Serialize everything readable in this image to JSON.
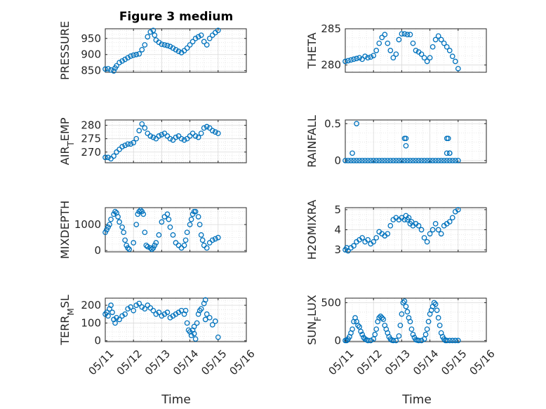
{
  "figure": {
    "title": "Figure 3 medium",
    "xlabel": "Time",
    "x_tick_labels": [
      "05/11",
      "05/12",
      "05/13",
      "05/14",
      "05/15",
      "05/16"
    ]
  },
  "colors": {
    "marker": "#0072BD",
    "grid": "#b0b0b0",
    "axes": "#262626"
  },
  "chart_data": [
    {
      "type": "scatter",
      "ylabel": "PRESSURE",
      "ylim": [
        845,
        980
      ],
      "yticks": [
        850,
        900,
        950
      ],
      "xlim": [
        11,
        16
      ],
      "grid": true,
      "x": [
        11.0,
        11.1,
        11.2,
        11.3,
        11.35,
        11.4,
        11.5,
        11.6,
        11.7,
        11.8,
        11.9,
        12.0,
        12.1,
        12.2,
        12.3,
        12.4,
        12.5,
        12.6,
        12.7,
        12.75,
        12.8,
        12.9,
        13.0,
        13.1,
        13.2,
        13.3,
        13.4,
        13.5,
        13.6,
        13.7,
        13.8,
        13.9,
        14.0,
        14.1,
        14.2,
        14.3,
        14.4,
        14.5,
        14.6,
        14.7,
        14.8,
        14.9,
        15.0
      ],
      "y": [
        855,
        856,
        852,
        849,
        858,
        865,
        875,
        880,
        885,
        890,
        895,
        898,
        900,
        902,
        915,
        930,
        955,
        970,
        975,
        960,
        945,
        938,
        932,
        930,
        928,
        925,
        920,
        915,
        910,
        906,
        912,
        920,
        930,
        940,
        950,
        955,
        960,
        940,
        930,
        950,
        960,
        968,
        975
      ]
    },
    {
      "type": "scatter",
      "ylabel": "THETA",
      "ylim": [
        279,
        285
      ],
      "yticks": [
        280,
        285
      ],
      "xlim": [
        11,
        16
      ],
      "grid": true,
      "x": [
        11.0,
        11.1,
        11.2,
        11.3,
        11.4,
        11.5,
        11.6,
        11.7,
        11.8,
        11.9,
        12.0,
        12.1,
        12.2,
        12.3,
        12.4,
        12.5,
        12.6,
        12.7,
        12.8,
        12.9,
        13.0,
        13.1,
        13.2,
        13.3,
        13.4,
        13.5,
        13.6,
        13.7,
        13.8,
        13.9,
        14.0,
        14.1,
        14.2,
        14.3,
        14.4,
        14.5,
        14.6,
        14.7,
        14.8,
        14.9,
        15.0
      ],
      "y": [
        280.5,
        280.6,
        280.7,
        280.8,
        280.9,
        281.0,
        280.8,
        281.2,
        281.0,
        281.1,
        281.3,
        282.0,
        283.0,
        283.8,
        284.2,
        283.0,
        282.0,
        281.0,
        281.5,
        283.5,
        284.3,
        284.3,
        284.2,
        284.2,
        283.0,
        282.0,
        281.8,
        281.5,
        281.0,
        280.5,
        281.0,
        282.5,
        283.5,
        284.0,
        283.5,
        283.0,
        282.5,
        282.0,
        281.2,
        280.5,
        279.5
      ]
    },
    {
      "type": "scatter",
      "ylabel": "AIR_TEMP",
      "ylim": [
        266,
        282
      ],
      "yticks": [
        270,
        275,
        280
      ],
      "xlim": [
        11,
        16
      ],
      "grid": true,
      "x": [
        11.0,
        11.1,
        11.2,
        11.3,
        11.4,
        11.5,
        11.6,
        11.7,
        11.8,
        11.9,
        12.0,
        12.1,
        12.2,
        12.3,
        12.4,
        12.5,
        12.6,
        12.7,
        12.8,
        12.9,
        13.0,
        13.1,
        13.2,
        13.3,
        13.4,
        13.5,
        13.6,
        13.7,
        13.8,
        13.9,
        14.0,
        14.1,
        14.2,
        14.3,
        14.4,
        14.5,
        14.6,
        14.7,
        14.8,
        14.9,
        15.0
      ],
      "y": [
        268,
        268,
        267.5,
        268.5,
        270,
        271,
        272,
        272.5,
        273,
        273,
        273.5,
        275,
        278,
        280.5,
        279,
        277,
        276,
        275.5,
        275,
        276,
        276.5,
        277,
        276,
        275,
        274.5,
        275.5,
        276,
        275,
        274.5,
        275,
        276,
        277,
        276,
        275.5,
        277,
        279,
        279.5,
        279,
        278,
        277.5,
        277
      ]
    },
    {
      "type": "scatter",
      "ylabel": "RAINFALL",
      "ylim": [
        -0.03,
        0.55
      ],
      "yticks": [
        0,
        0.5
      ],
      "xlim": [
        11,
        16
      ],
      "grid": true,
      "x": [
        11.0,
        11.1,
        11.2,
        11.3,
        11.4,
        11.5,
        11.6,
        11.7,
        11.8,
        11.9,
        12.0,
        12.1,
        12.2,
        12.3,
        12.4,
        12.5,
        12.6,
        12.7,
        12.8,
        12.9,
        13.0,
        13.1,
        13.2,
        13.3,
        13.4,
        13.5,
        13.6,
        13.7,
        13.8,
        13.9,
        14.0,
        14.1,
        14.2,
        14.3,
        14.4,
        14.5,
        14.6,
        14.7,
        14.8,
        14.9,
        15.0,
        11.25,
        11.4,
        13.1,
        13.15,
        13.15,
        14.6,
        14.65,
        14.7,
        14.6,
        14.7
      ],
      "y": [
        0,
        0,
        0,
        0,
        0,
        0,
        0,
        0,
        0,
        0,
        0,
        0,
        0,
        0,
        0,
        0,
        0,
        0,
        0,
        0,
        0,
        0,
        0,
        0,
        0,
        0,
        0,
        0,
        0,
        0,
        0,
        0,
        0,
        0,
        0,
        0,
        0,
        0,
        0,
        0,
        0,
        0.1,
        0.5,
        0.3,
        0.3,
        0.2,
        0.3,
        0.3,
        0.1,
        0.1,
        0.1
      ]
    },
    {
      "type": "scatter",
      "ylabel": "MIXDEPTH",
      "ylim": [
        -50,
        1650
      ],
      "yticks": [
        0,
        1000
      ],
      "xlim": [
        11,
        16
      ],
      "grid": true,
      "x": [
        11.0,
        11.05,
        11.1,
        11.15,
        11.2,
        11.3,
        11.35,
        11.4,
        11.45,
        11.5,
        11.6,
        11.65,
        11.7,
        11.75,
        11.8,
        11.85,
        12.0,
        12.1,
        12.15,
        12.2,
        12.25,
        12.3,
        12.35,
        12.4,
        12.45,
        12.5,
        12.6,
        12.65,
        12.7,
        12.75,
        12.8,
        12.9,
        13.0,
        13.1,
        13.2,
        13.25,
        13.3,
        13.4,
        13.5,
        13.6,
        13.7,
        13.8,
        13.85,
        13.9,
        14.0,
        14.05,
        14.1,
        14.15,
        14.2,
        14.3,
        14.35,
        14.4,
        14.45,
        14.5,
        14.6,
        14.7,
        14.8,
        14.9,
        15.0
      ],
      "y": [
        700,
        800,
        900,
        1000,
        1200,
        1400,
        1500,
        1450,
        1300,
        1100,
        900,
        700,
        400,
        200,
        100,
        50,
        300,
        1000,
        1400,
        1500,
        1550,
        1500,
        1400,
        700,
        200,
        150,
        100,
        50,
        100,
        200,
        300,
        600,
        1100,
        1300,
        1400,
        1200,
        900,
        600,
        300,
        200,
        100,
        200,
        400,
        700,
        1000,
        1200,
        1400,
        1500,
        1500,
        1300,
        1000,
        600,
        400,
        200,
        100,
        300,
        400,
        450,
        500
      ]
    },
    {
      "type": "scatter",
      "ylabel": "H2OMIXRA",
      "ylim": [
        2.9,
        5.1
      ],
      "yticks": [
        3,
        4,
        5
      ],
      "xlim": [
        11,
        16
      ],
      "grid": true,
      "x": [
        11.0,
        11.05,
        11.1,
        11.2,
        11.3,
        11.4,
        11.5,
        11.6,
        11.7,
        11.8,
        11.9,
        12.0,
        12.1,
        12.2,
        12.3,
        12.4,
        12.5,
        12.6,
        12.7,
        12.8,
        12.9,
        13.0,
        13.1,
        13.2,
        13.3,
        13.4,
        13.5,
        13.6,
        13.7,
        13.8,
        13.9,
        14.0,
        14.1,
        14.2,
        14.3,
        14.4,
        14.5,
        14.6,
        14.7,
        14.8,
        14.9,
        15.0,
        13.15,
        13.25,
        13.35
      ],
      "y": [
        3.0,
        3.1,
        2.95,
        3.1,
        3.2,
        3.4,
        3.5,
        3.6,
        3.4,
        3.5,
        3.3,
        3.4,
        3.6,
        3.9,
        3.8,
        3.7,
        3.8,
        4.2,
        4.5,
        4.6,
        4.5,
        4.6,
        4.5,
        4.5,
        4.3,
        4.2,
        4.3,
        4.2,
        4.0,
        3.6,
        3.4,
        3.8,
        4.0,
        4.3,
        4.0,
        3.8,
        4.2,
        4.3,
        4.4,
        4.6,
        4.9,
        5.0,
        4.7,
        4.6,
        4.4
      ]
    },
    {
      "type": "scatter",
      "ylabel": "TERR_MSL",
      "ylim": [
        -5,
        240
      ],
      "yticks": [
        0,
        100,
        200
      ],
      "xlim": [
        11,
        16
      ],
      "grid": true,
      "x": [
        11.0,
        11.05,
        11.1,
        11.15,
        11.2,
        11.25,
        11.3,
        11.35,
        11.4,
        11.5,
        11.6,
        11.7,
        11.8,
        11.9,
        12.0,
        12.1,
        12.2,
        12.3,
        12.4,
        12.5,
        12.6,
        12.7,
        12.8,
        12.9,
        13.0,
        13.1,
        13.2,
        13.3,
        13.4,
        13.5,
        13.6,
        13.7,
        13.8,
        13.85,
        13.9,
        14.0,
        14.05,
        14.1,
        14.15,
        14.2,
        14.25,
        14.3,
        14.35,
        14.4,
        14.5,
        14.55,
        14.6,
        14.7,
        14.8,
        14.9,
        15.0,
        13.95,
        14.15,
        14.55
      ],
      "y": [
        150,
        160,
        140,
        180,
        200,
        160,
        120,
        100,
        130,
        120,
        140,
        150,
        180,
        190,
        170,
        200,
        210,
        190,
        180,
        200,
        185,
        170,
        150,
        160,
        140,
        150,
        160,
        130,
        140,
        150,
        160,
        170,
        150,
        170,
        100,
        50,
        30,
        60,
        80,
        10,
        100,
        150,
        170,
        180,
        210,
        230,
        150,
        130,
        90,
        110,
        20,
        60,
        40,
        120
      ]
    },
    {
      "type": "scatter",
      "ylabel": "SUN_FLUX",
      "ylim": [
        -15,
        560
      ],
      "yticks": [
        0,
        500
      ],
      "xlim": [
        11,
        16
      ],
      "grid": true,
      "x": [
        11.0,
        11.05,
        11.1,
        11.15,
        11.2,
        11.25,
        11.3,
        11.35,
        11.4,
        11.45,
        11.5,
        11.55,
        11.6,
        11.65,
        11.7,
        11.75,
        11.8,
        11.9,
        12.0,
        12.05,
        12.1,
        12.15,
        12.2,
        12.25,
        12.3,
        12.35,
        12.4,
        12.45,
        12.5,
        12.55,
        12.6,
        12.65,
        12.7,
        12.8,
        12.9,
        12.95,
        13.0,
        13.05,
        13.1,
        13.15,
        13.2,
        13.25,
        13.3,
        13.35,
        13.4,
        13.45,
        13.5,
        13.55,
        13.6,
        13.7,
        13.8,
        13.85,
        13.9,
        13.95,
        14.0,
        14.05,
        14.1,
        14.15,
        14.2,
        14.25,
        14.3,
        14.35,
        14.4,
        14.45,
        14.5,
        14.55,
        14.6,
        14.7,
        14.8,
        14.9,
        15.0
      ],
      "y": [
        0,
        0,
        20,
        50,
        100,
        150,
        250,
        300,
        250,
        200,
        180,
        120,
        80,
        40,
        20,
        10,
        0,
        0,
        20,
        80,
        150,
        250,
        300,
        320,
        300,
        280,
        200,
        150,
        100,
        50,
        20,
        5,
        0,
        0,
        60,
        200,
        350,
        500,
        520,
        450,
        380,
        300,
        250,
        150,
        80,
        40,
        10,
        5,
        0,
        0,
        20,
        80,
        150,
        250,
        350,
        400,
        450,
        500,
        480,
        400,
        300,
        200,
        100,
        50,
        20,
        0,
        0,
        0,
        0,
        0,
        0
      ]
    }
  ]
}
